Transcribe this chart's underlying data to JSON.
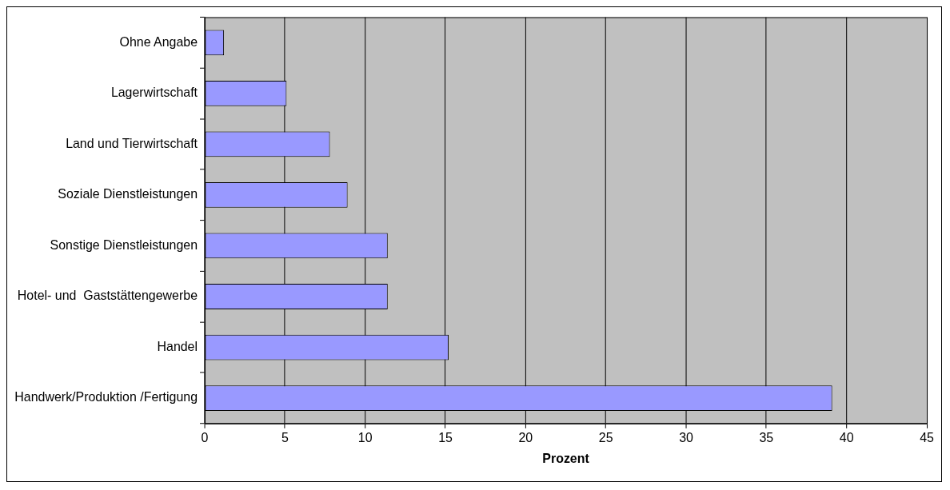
{
  "chart_data": {
    "type": "bar",
    "orientation": "horizontal",
    "xlabel": "Prozent",
    "categories": [
      "Ohne Angabe",
      "Lagerwirtschaft",
      "Land und Tierwirtschaft",
      "Soziale Dienstleistungen",
      "Sonstige Dienstleistungen",
      "Hotel- und  Gaststättengewerbe",
      "Handel",
      "Handwerk/Produktion /Fertigung"
    ],
    "values": [
      1.2,
      5.1,
      7.8,
      8.9,
      11.4,
      11.4,
      15.2,
      39.1
    ],
    "color": "#9999ff",
    "xlim": [
      0,
      45
    ],
    "xticks": [
      0,
      5,
      10,
      15,
      20,
      25,
      30,
      35,
      40,
      45
    ],
    "grid": "x",
    "legend": false
  }
}
